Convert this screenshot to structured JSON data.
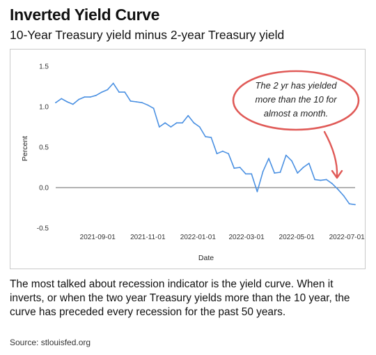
{
  "header": {
    "title": "Inverted Yield Curve",
    "subtitle": "10-Year Treasury yield minus 2-year Treasury yield"
  },
  "description": "The most talked about recession indicator is the yield curve. When it inverts, or when the two year Treasury yields more than the 10 year, the curve has preceded every recession for the past 50 years.",
  "source": "Source: stlouisfed.org",
  "colors": {
    "series": "#4a90e2",
    "annotation": "#e05a57",
    "zero_line": "#666666",
    "tick_text": "#333333"
  },
  "chart_data": {
    "type": "line",
    "title": "",
    "xlabel": "Date",
    "ylabel": "Percent",
    "ylim": [
      -0.5,
      1.5
    ],
    "yticks": [
      -0.5,
      0.0,
      0.5,
      1.0,
      1.5
    ],
    "ytick_labels": [
      "-0.5",
      "0.0",
      "0.5",
      "1.0",
      "1.5"
    ],
    "xlim": [
      "2021-07-12",
      "2022-07-11"
    ],
    "xticks": [
      "2021-09-01",
      "2021-11-01",
      "2022-01-01",
      "2022-03-01",
      "2022-05-01",
      "2022-07-01"
    ],
    "grid": false,
    "series": [
      {
        "name": "",
        "x": [
          "2021-07-12",
          "2021-07-19",
          "2021-07-26",
          "2021-08-02",
          "2021-08-09",
          "2021-08-16",
          "2021-08-23",
          "2021-08-30",
          "2021-09-06",
          "2021-09-13",
          "2021-09-20",
          "2021-09-27",
          "2021-10-04",
          "2021-10-11",
          "2021-10-18",
          "2021-10-25",
          "2021-11-01",
          "2021-11-08",
          "2021-11-15",
          "2021-11-22",
          "2021-11-29",
          "2021-12-06",
          "2021-12-13",
          "2021-12-20",
          "2021-12-27",
          "2022-01-03",
          "2022-01-10",
          "2022-01-17",
          "2022-01-24",
          "2022-01-31",
          "2022-02-07",
          "2022-02-14",
          "2022-02-21",
          "2022-02-28",
          "2022-03-07",
          "2022-03-14",
          "2022-03-21",
          "2022-03-28",
          "2022-04-04",
          "2022-04-11",
          "2022-04-18",
          "2022-04-25",
          "2022-05-02",
          "2022-05-09",
          "2022-05-16",
          "2022-05-23",
          "2022-05-30",
          "2022-06-06",
          "2022-06-13",
          "2022-06-20",
          "2022-06-27",
          "2022-07-04",
          "2022-07-11"
        ],
        "values": [
          1.05,
          1.1,
          1.06,
          1.03,
          1.09,
          1.12,
          1.12,
          1.14,
          1.18,
          1.21,
          1.29,
          1.18,
          1.18,
          1.07,
          1.06,
          1.05,
          1.02,
          0.98,
          0.75,
          0.8,
          0.75,
          0.8,
          0.8,
          0.89,
          0.8,
          0.75,
          0.63,
          0.62,
          0.42,
          0.45,
          0.42,
          0.24,
          0.25,
          0.17,
          0.17,
          -0.05,
          0.2,
          0.36,
          0.18,
          0.19,
          0.4,
          0.33,
          0.18,
          0.25,
          0.3,
          0.1,
          0.09,
          0.1,
          0.05,
          -0.02,
          -0.1,
          -0.2,
          -0.21
        ]
      }
    ],
    "annotation": {
      "text_lines": [
        "The 2 yr has yielded",
        "more than the 10 for",
        "almost a month."
      ]
    }
  }
}
